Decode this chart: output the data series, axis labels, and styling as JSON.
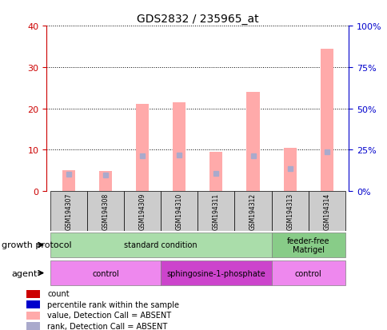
{
  "title": "GDS2832 / 235965_at",
  "samples": [
    "GSM194307",
    "GSM194308",
    "GSM194309",
    "GSM194310",
    "GSM194311",
    "GSM194312",
    "GSM194313",
    "GSM194314"
  ],
  "bar_values_pink": [
    5.0,
    4.8,
    21.0,
    21.5,
    9.5,
    24.0,
    10.5,
    34.5
  ],
  "rank_values_blue": [
    10.2,
    9.5,
    21.5,
    22.0,
    10.5,
    21.5,
    13.8,
    23.5
  ],
  "left_ylim": [
    0,
    40
  ],
  "right_ylim": [
    0,
    100
  ],
  "left_yticks": [
    0,
    10,
    20,
    30,
    40
  ],
  "right_yticks": [
    0,
    25,
    50,
    75,
    100
  ],
  "right_yticklabels": [
    "0%",
    "25%",
    "50%",
    "75%",
    "100%"
  ],
  "left_color": "#cc0000",
  "right_color": "#0000cc",
  "pink_bar_color": "#ffaaaa",
  "blue_square_color": "#aaaacc",
  "grid_color": "#000000",
  "growth_protocol_groups": [
    {
      "label": "standard condition",
      "start": 0,
      "end": 6,
      "color": "#aaddaa"
    },
    {
      "label": "feeder-free\nMatrigel",
      "start": 6,
      "end": 8,
      "color": "#88cc88"
    }
  ],
  "agent_groups": [
    {
      "label": "control",
      "start": 0,
      "end": 3,
      "color": "#ee88ee"
    },
    {
      "label": "sphingosine-1-phosphate",
      "start": 3,
      "end": 6,
      "color": "#cc44cc"
    },
    {
      "label": "control",
      "start": 6,
      "end": 8,
      "color": "#ee88ee"
    }
  ],
  "legend_items": [
    {
      "label": "count",
      "color": "#cc0000",
      "marker": "s"
    },
    {
      "label": "percentile rank within the sample",
      "color": "#0000cc",
      "marker": "s"
    },
    {
      "label": "value, Detection Call = ABSENT",
      "color": "#ffaaaa",
      "marker": "s"
    },
    {
      "label": "rank, Detection Call = ABSENT",
      "color": "#aaaacc",
      "marker": "s"
    }
  ],
  "growth_protocol_label": "growth protocol",
  "agent_label": "agent",
  "bg_color": "#ffffff",
  "plot_bg": "#ffffff"
}
